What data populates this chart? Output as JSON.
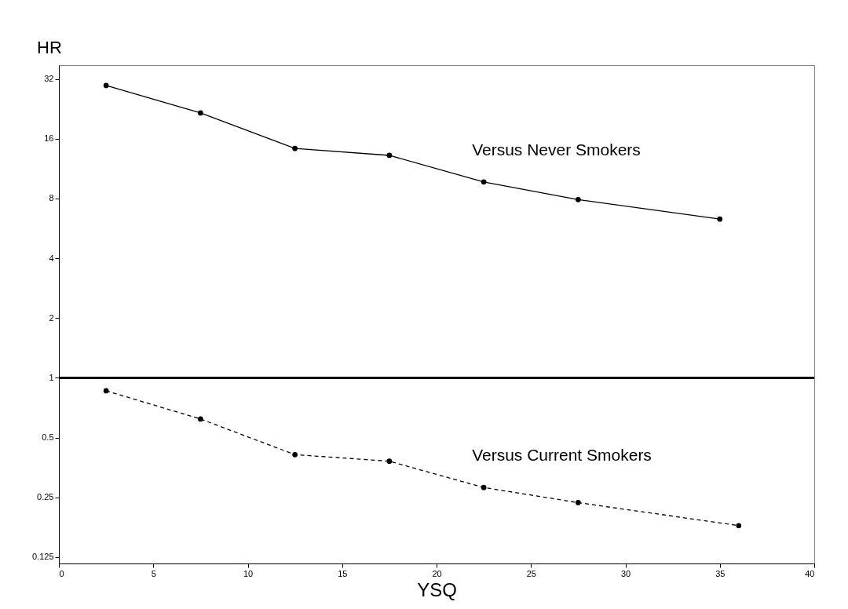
{
  "chart_data": {
    "type": "line",
    "xlabel": "YSQ",
    "ylabel": "HR",
    "log": "y",
    "grid": false,
    "marker": "circle",
    "xlim": [
      0,
      40
    ],
    "xticks": [
      0,
      5,
      10,
      15,
      20,
      25,
      30,
      35,
      40
    ],
    "ylim": [
      0.116,
      37.6
    ],
    "yticks": [
      0.125,
      0.25,
      0.5,
      1,
      2,
      4,
      8,
      16,
      32
    ],
    "series": [
      {
        "name": "Versus Never Smokers",
        "color": "#000000",
        "line_style": "solid",
        "x": [
          2.5,
          7.5,
          12.5,
          17.5,
          22.5,
          27.5,
          35
        ],
        "values": [
          29.7,
          21.6,
          14.3,
          13.2,
          9.7,
          7.9,
          6.3
        ]
      },
      {
        "name": "Versus Current Smokers",
        "color": "#000000",
        "line_style": "dashed",
        "x": [
          2.5,
          7.5,
          12.5,
          17.5,
          22.5,
          27.5,
          36
        ],
        "values": [
          0.86,
          0.62,
          0.41,
          0.38,
          0.28,
          0.235,
          0.18
        ]
      }
    ],
    "ref_lines": [
      {
        "axis": "y",
        "value": 1,
        "color": "#000000"
      }
    ]
  }
}
